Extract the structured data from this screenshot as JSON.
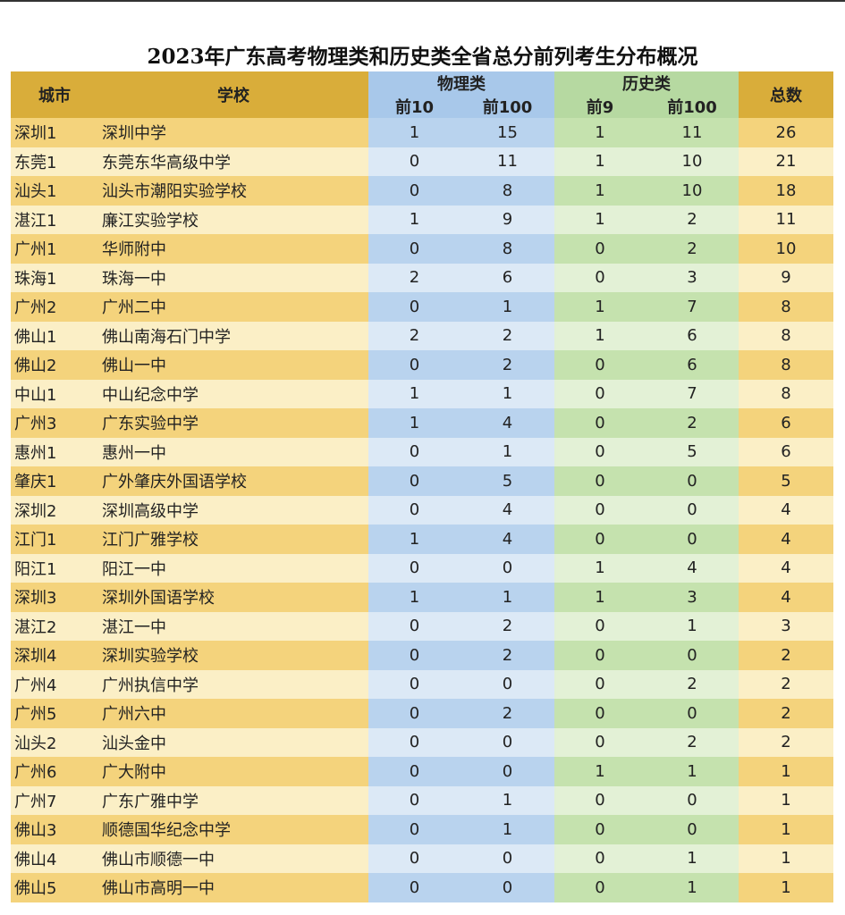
{
  "header": {
    "title": "2023年广东高考物理类和历史类全省总分前列考生分布概况"
  },
  "table": {
    "columns": {
      "city": "城市",
      "school": "学校",
      "physics": {
        "label": "物理类",
        "sub": [
          "前10",
          "前100"
        ]
      },
      "history": {
        "label": "历史类",
        "sub": [
          "前9",
          "前100"
        ]
      },
      "total": "总数"
    },
    "rows": [
      [
        "深圳1",
        "深圳中学",
        1,
        15,
        1,
        11,
        26
      ],
      [
        "东莞1",
        "东莞东华高级中学",
        0,
        11,
        1,
        10,
        21
      ],
      [
        "汕头1",
        "汕头市潮阳实验学校",
        0,
        8,
        1,
        10,
        18
      ],
      [
        "湛江1",
        "廉江实验学校",
        1,
        9,
        1,
        2,
        11
      ],
      [
        "广州1",
        "华师附中",
        0,
        8,
        0,
        2,
        10
      ],
      [
        "珠海1",
        "珠海一中",
        2,
        6,
        0,
        3,
        9
      ],
      [
        "广州2",
        "广州二中",
        0,
        1,
        1,
        7,
        8
      ],
      [
        "佛山1",
        "佛山南海石门中学",
        2,
        2,
        1,
        6,
        8
      ],
      [
        "佛山2",
        "佛山一中",
        0,
        2,
        0,
        6,
        8
      ],
      [
        "中山1",
        "中山纪念中学",
        1,
        1,
        0,
        7,
        8
      ],
      [
        "广州3",
        "广东实验中学",
        1,
        4,
        0,
        2,
        6
      ],
      [
        "惠州1",
        "惠州一中",
        0,
        1,
        0,
        5,
        6
      ],
      [
        "肇庆1",
        "广外肇庆外国语学校",
        0,
        5,
        0,
        0,
        5
      ],
      [
        "深圳2",
        "深圳高级中学",
        0,
        4,
        0,
        0,
        4
      ],
      [
        "江门1",
        "江门广雅学校",
        1,
        4,
        0,
        0,
        4
      ],
      [
        "阳江1",
        "阳江一中",
        0,
        0,
        1,
        4,
        4
      ],
      [
        "深圳3",
        "深圳外国语学校",
        1,
        1,
        1,
        3,
        4
      ],
      [
        "湛江2",
        "湛江一中",
        0,
        2,
        0,
        1,
        3
      ],
      [
        "深圳4",
        "深圳实验学校",
        0,
        2,
        0,
        0,
        2
      ],
      [
        "广州4",
        "广州执信中学",
        0,
        0,
        0,
        2,
        2
      ],
      [
        "广州5",
        "广州六中",
        0,
        2,
        0,
        0,
        2
      ],
      [
        "汕头2",
        "汕头金中",
        0,
        0,
        0,
        2,
        2
      ],
      [
        "广州6",
        "广大附中",
        0,
        0,
        1,
        1,
        1
      ],
      [
        "广州7",
        "广东广雅中学",
        0,
        1,
        0,
        0,
        1
      ],
      [
        "佛山3",
        "顺德国华纪念中学",
        0,
        1,
        0,
        0,
        1
      ],
      [
        "佛山4",
        "佛山市顺德一中",
        0,
        0,
        0,
        1,
        1
      ],
      [
        "佛山5",
        "佛山市高明一中",
        0,
        0,
        0,
        1,
        1
      ]
    ]
  }
}
